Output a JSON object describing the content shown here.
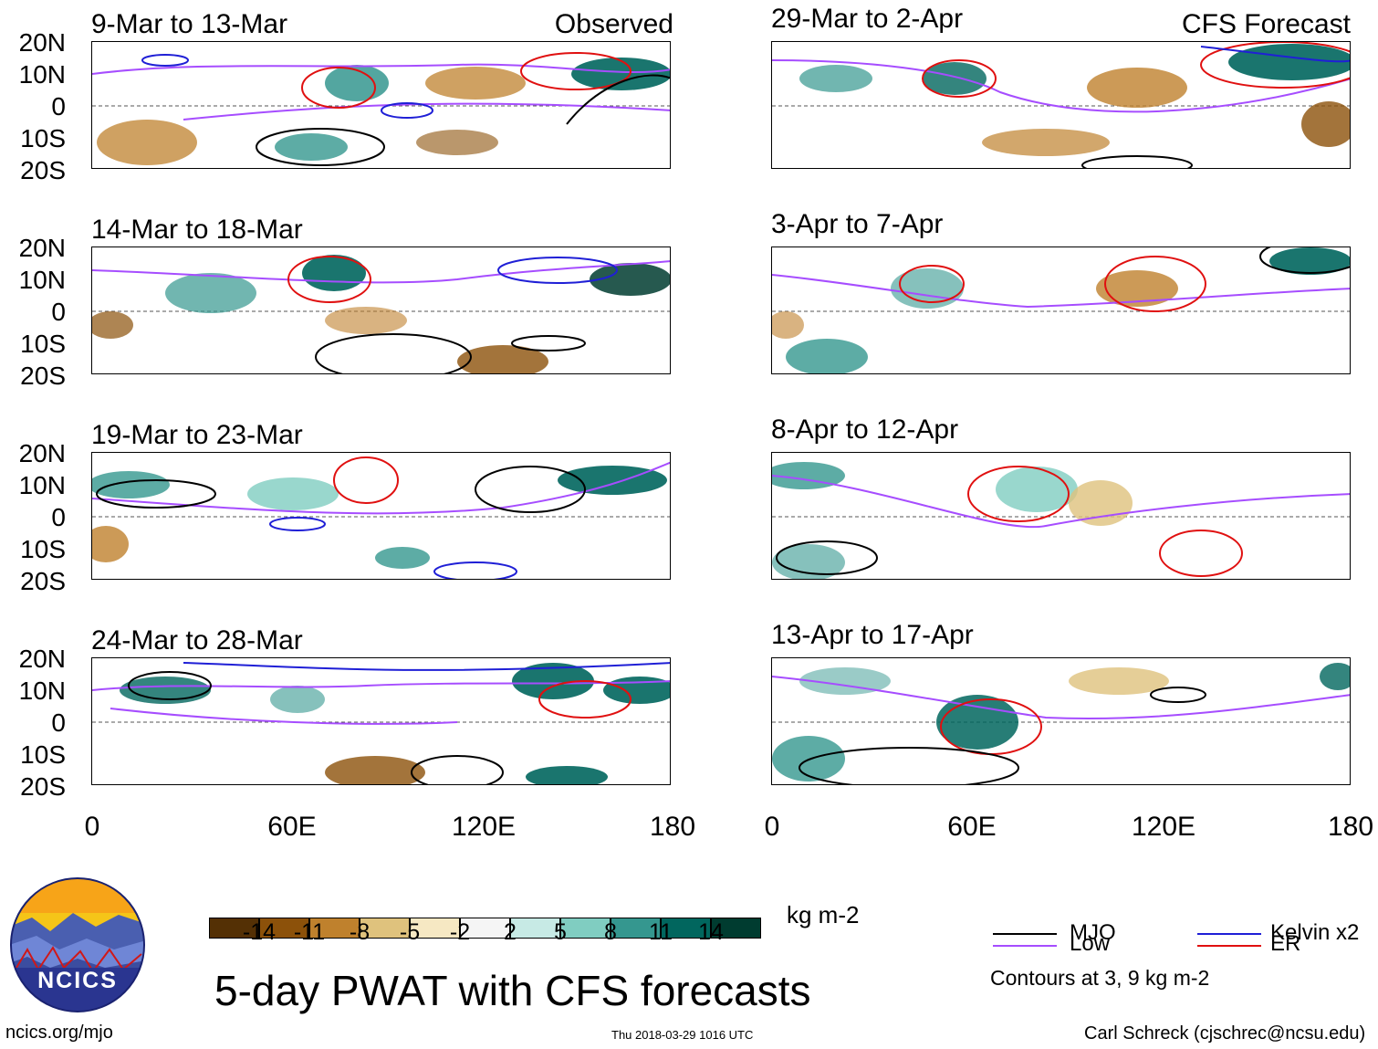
{
  "panels": {
    "left": [
      {
        "title": "9-Mar to 13-Mar",
        "label": "Observed"
      },
      {
        "title": "14-Mar to 18-Mar"
      },
      {
        "title": "19-Mar to 23-Mar"
      },
      {
        "title": "24-Mar to 28-Mar"
      }
    ],
    "right": [
      {
        "title": "29-Mar to 2-Apr",
        "label": "CFS Forecast"
      },
      {
        "title": "3-Apr to 7-Apr"
      },
      {
        "title": "8-Apr to 12-Apr"
      },
      {
        "title": "13-Apr to 17-Apr"
      }
    ]
  },
  "axes": {
    "lat_ticks": [
      "20N",
      "10N",
      "0",
      "10S",
      "20S"
    ],
    "lon_ticks": [
      "0",
      "60E",
      "120E",
      "180"
    ]
  },
  "colorbar": {
    "labels": [
      "-14",
      "-11",
      "-8",
      "-5",
      "-2",
      "2",
      "5",
      "8",
      "11",
      "14"
    ],
    "colors": [
      "#543005",
      "#8c510a",
      "#bf812d",
      "#dfc27d",
      "#f6e8c3",
      "#f5f5f5",
      "#c7eae5",
      "#80cdc1",
      "#35978f",
      "#01665e",
      "#003c30"
    ],
    "units": "kg m-2"
  },
  "legend": {
    "items": [
      {
        "label": "MJO",
        "color": "#000000"
      },
      {
        "label": "Kelvin x2",
        "color": "#1f1fd6"
      },
      {
        "label": "Low",
        "color": "#a64dff"
      },
      {
        "label": "ER",
        "color": "#e01010"
      }
    ],
    "note": "Contours at 3, 9 kg m-2"
  },
  "main_title": "5-day PWAT with CFS forecasts",
  "logo_text": "NCICS",
  "footer": {
    "url": "ncics.org/mjo",
    "timestamp": "Thu 2018-03-29 1016 UTC",
    "credit": "Carl Schreck (cjschrec@ncsu.edu)"
  }
}
